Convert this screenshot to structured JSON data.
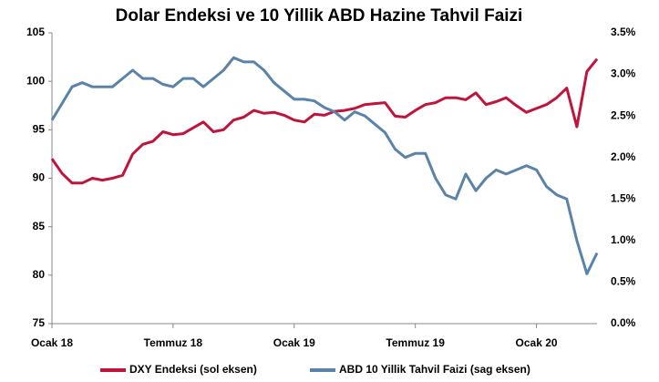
{
  "chart_data": {
    "type": "line",
    "title": "Dolar Endeksi ve 10 Yillik ABD Hazine Tahvil Faizi",
    "categories": [
      "Ocak 18",
      null,
      null,
      null,
      null,
      null,
      null,
      null,
      null,
      null,
      null,
      null,
      "Temmuz 18",
      null,
      null,
      null,
      null,
      null,
      null,
      null,
      null,
      null,
      null,
      null,
      "Ocak 19",
      null,
      null,
      null,
      null,
      null,
      null,
      null,
      null,
      null,
      null,
      null,
      "Temmuz 19",
      null,
      null,
      null,
      null,
      null,
      null,
      null,
      null,
      null,
      null,
      null,
      "Ocak 20",
      null,
      null,
      null,
      null,
      null,
      null
    ],
    "series": [
      {
        "name": "DXY Endeksi (sol eksen)",
        "color": "#c0143c",
        "axis": "y",
        "values": [
          92,
          90.5,
          89.5,
          89.5,
          90,
          89.8,
          90,
          90.3,
          92.5,
          93.5,
          93.8,
          94.8,
          94.5,
          94.6,
          95.2,
          95.8,
          94.8,
          95.0,
          96.0,
          96.3,
          97.0,
          96.7,
          96.8,
          96.5,
          96.0,
          95.8,
          96.6,
          96.5,
          96.9,
          97.0,
          97.2,
          97.6,
          97.7,
          97.8,
          96.4,
          96.3,
          97.0,
          97.6,
          97.8,
          98.3,
          98.3,
          98.1,
          98.8,
          97.6,
          97.9,
          98.3,
          97.5,
          96.8,
          97.2,
          97.6,
          98.3,
          99.3,
          95.3,
          101,
          102.3
        ]
      },
      {
        "name": "ABD 10 Yillik Tahvil Faizi (sag eksen)",
        "color": "#5b82a8",
        "axis": "y2",
        "values": [
          2.45,
          2.65,
          2.85,
          2.9,
          2.85,
          2.85,
          2.85,
          2.95,
          3.05,
          2.95,
          2.95,
          2.88,
          2.85,
          2.95,
          2.95,
          2.85,
          2.95,
          3.05,
          3.2,
          3.15,
          3.15,
          3.05,
          2.9,
          2.8,
          2.7,
          2.7,
          2.68,
          2.6,
          2.55,
          2.45,
          2.55,
          2.5,
          2.4,
          2.3,
          2.1,
          2.0,
          2.05,
          2.05,
          1.75,
          1.55,
          1.5,
          1.8,
          1.6,
          1.75,
          1.85,
          1.8,
          1.85,
          1.9,
          1.85,
          1.65,
          1.55,
          1.5,
          1.0,
          0.6,
          0.85
        ]
      }
    ],
    "ylim": [
      75,
      105
    ],
    "yticks": [
      75,
      80,
      85,
      90,
      95,
      100,
      105
    ],
    "y2lim": [
      0,
      3.5
    ],
    "y2ticks": [
      {
        "value": 0,
        "label": "0.0%"
      },
      {
        "value": 0.5,
        "label": "0.5%"
      },
      {
        "value": 1,
        "label": "1.0%"
      },
      {
        "value": 1.5,
        "label": "1.5%"
      },
      {
        "value": 2,
        "label": "2.0%"
      },
      {
        "value": 2.5,
        "label": "2.5%"
      },
      {
        "value": 3,
        "label": "3.0%"
      },
      {
        "value": 3.5,
        "label": "3.5%"
      }
    ],
    "grid": false,
    "legend": "bottom"
  }
}
